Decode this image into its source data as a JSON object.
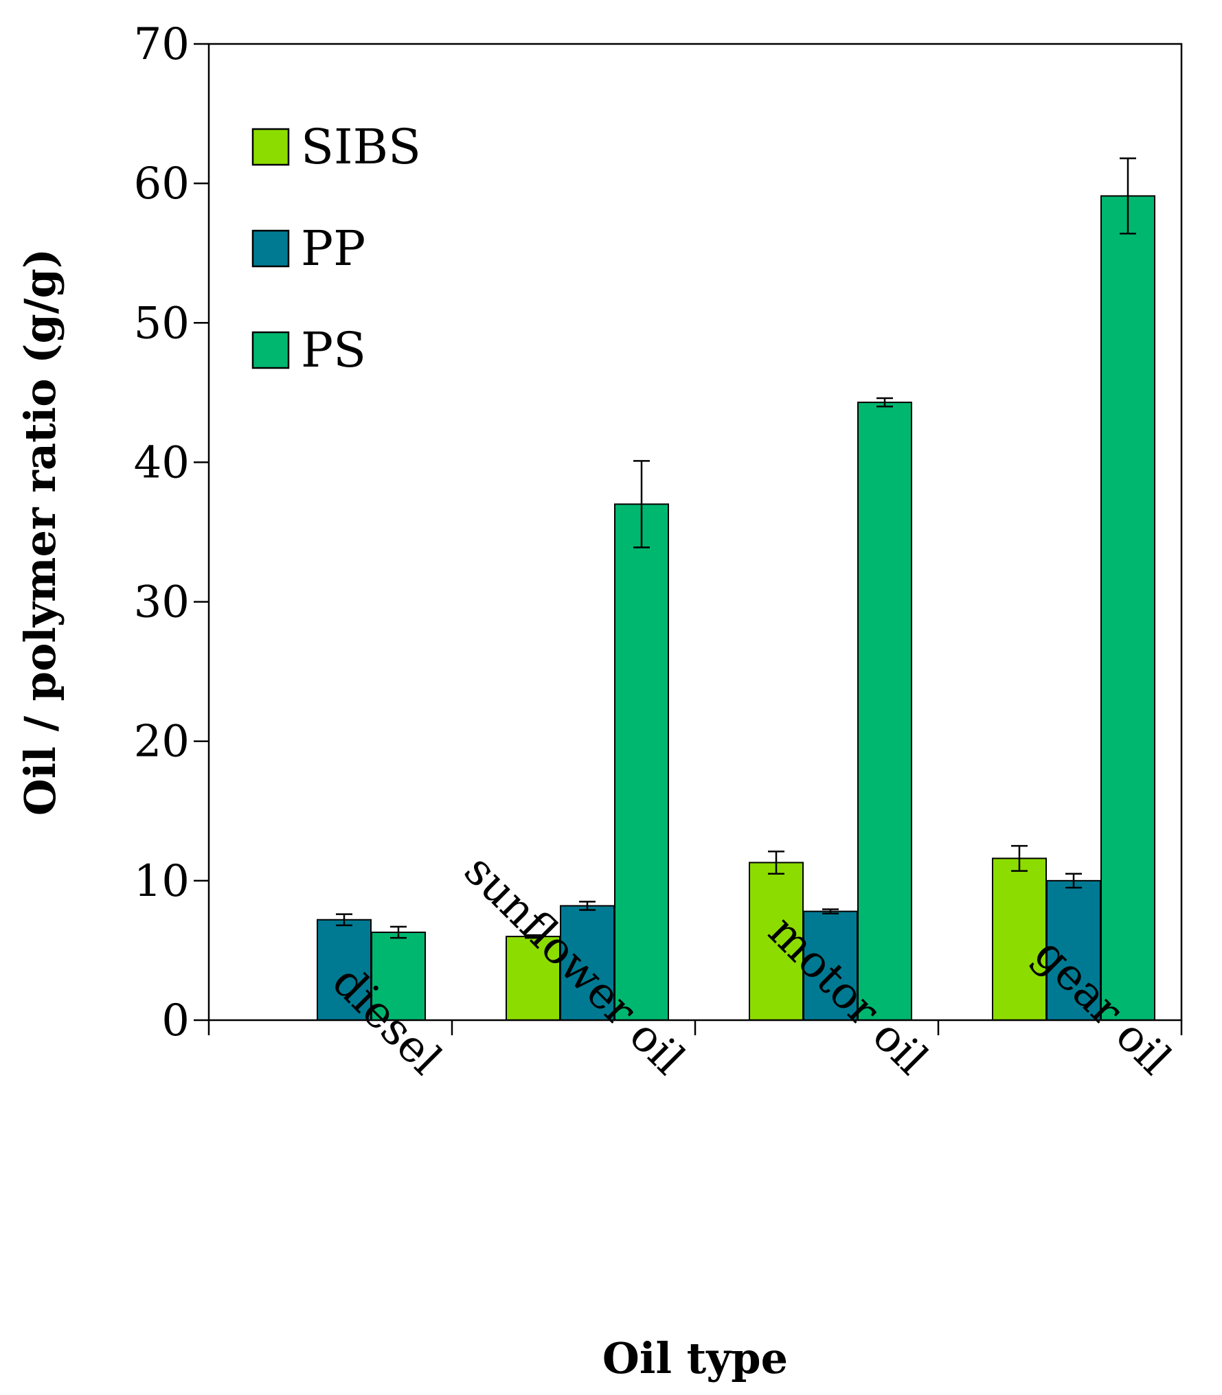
{
  "chart_data": {
    "type": "bar",
    "title": "",
    "xlabel": "Oil type",
    "ylabel": "Oil / polymer ratio (g/g)",
    "ylim": [
      0,
      70
    ],
    "yticks": [
      0,
      10,
      20,
      30,
      40,
      50,
      60,
      70
    ],
    "ytick_labels": [
      "0",
      "10",
      "20",
      "30",
      "40",
      "50",
      "60",
      "70"
    ],
    "categories": [
      "diesel",
      "sunflower oil",
      "motor oil",
      "gear oil"
    ],
    "grid": false,
    "legend_position": "top-left",
    "series": [
      {
        "name": "SIBS",
        "color": "#8ddc00",
        "values": [
          null,
          6.0,
          11.3,
          11.6
        ],
        "errors": [
          null,
          0.1,
          0.8,
          0.9
        ]
      },
      {
        "name": "PP",
        "color": "#007a92",
        "values": [
          7.2,
          8.2,
          7.8,
          10.0
        ],
        "errors": [
          0.4,
          0.3,
          0.15,
          0.5
        ]
      },
      {
        "name": "PS",
        "color": "#00b770",
        "values": [
          6.3,
          37.0,
          44.3,
          59.1
        ],
        "errors": [
          0.4,
          3.1,
          0.3,
          2.7
        ]
      }
    ]
  }
}
